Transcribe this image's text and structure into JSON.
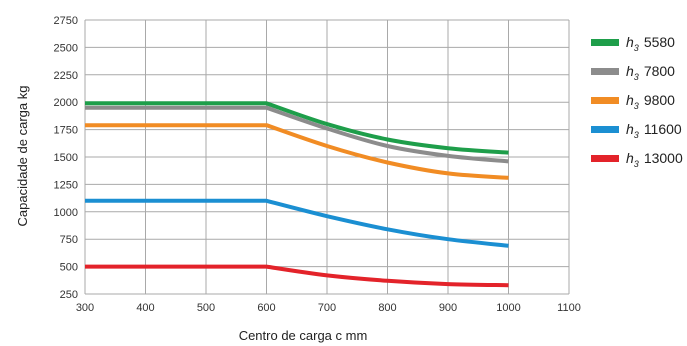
{
  "chart_data": {
    "type": "line",
    "title": "",
    "xlabel": "Centro de carga c mm",
    "ylabel": "Capacidade de carga kg",
    "xlim": [
      300,
      1100
    ],
    "ylim": [
      250,
      2750
    ],
    "x_ticks": [
      300,
      400,
      500,
      600,
      700,
      800,
      900,
      1000,
      1100
    ],
    "y_ticks": [
      250,
      500,
      750,
      1000,
      1250,
      1500,
      1750,
      2000,
      2250,
      2500,
      2750
    ],
    "grid": true,
    "legend_position": "right",
    "x": [
      300,
      400,
      500,
      600,
      700,
      800,
      900,
      1000
    ],
    "series": [
      {
        "name_prefix": "h",
        "name_sub": "3",
        "name_value": "5580",
        "color": "#1e9e4a",
        "values": [
          1990,
          1990,
          1990,
          1990,
          1800,
          1660,
          1580,
          1540
        ]
      },
      {
        "name_prefix": "h",
        "name_sub": "3",
        "name_value": "7800",
        "color": "#8c8c8c",
        "values": [
          1950,
          1950,
          1950,
          1950,
          1760,
          1600,
          1510,
          1460
        ]
      },
      {
        "name_prefix": "h",
        "name_sub": "3",
        "name_value": "9800",
        "color": "#f18c24",
        "values": [
          1790,
          1790,
          1790,
          1790,
          1600,
          1450,
          1350,
          1310
        ]
      },
      {
        "name_prefix": "h",
        "name_sub": "3",
        "name_value": "11600",
        "color": "#1b8fd2",
        "values": [
          1100,
          1100,
          1100,
          1100,
          960,
          840,
          750,
          690
        ]
      },
      {
        "name_prefix": "h",
        "name_sub": "3",
        "name_value": "13000",
        "color": "#e3232a",
        "values": [
          500,
          500,
          500,
          500,
          420,
          370,
          340,
          330
        ]
      }
    ]
  }
}
